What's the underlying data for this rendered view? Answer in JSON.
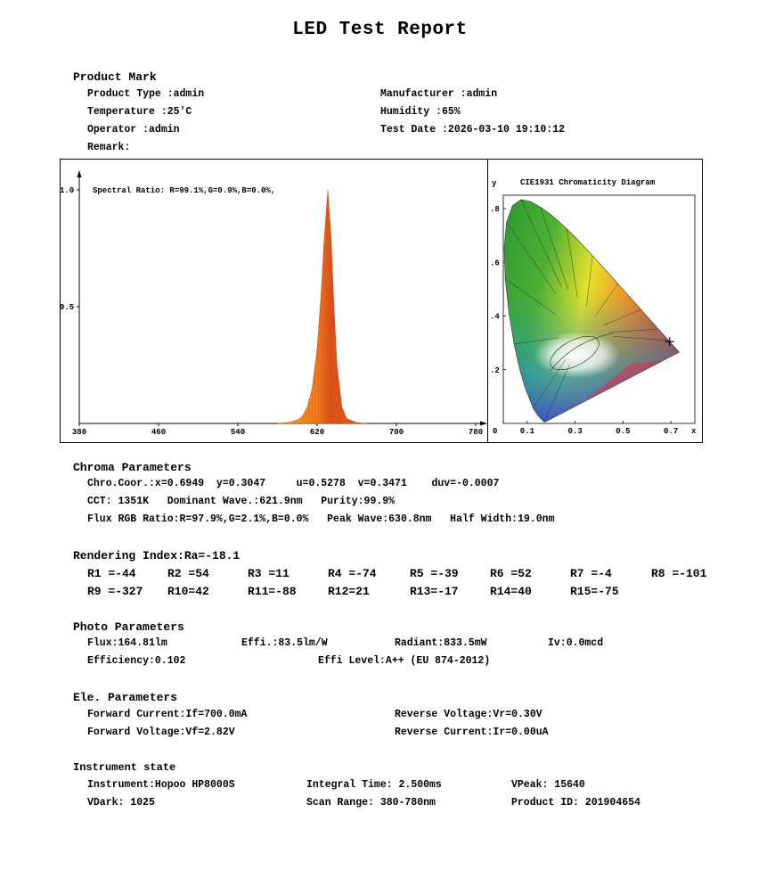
{
  "report_title": "LED Test Report",
  "product": {
    "section_title": "Product Mark",
    "product_type": "Product Type :admin",
    "manufacturer": "Manufacturer :admin",
    "temperature": "Temperature :25'C",
    "humidity": "Humidity :65%",
    "operator": "Operator :admin",
    "test_date": "Test Date :2026-03-10 19:10:12",
    "remark": "Remark:"
  },
  "chart_data": [
    {
      "type": "area",
      "title": "",
      "annotation": "Spectral Ratio:  R=99.1%,G=0.9%,B=0.0%,",
      "xlabel": "",
      "ylabel": "",
      "xlim": [
        380,
        780
      ],
      "ylim": [
        0,
        1.0
      ],
      "x_ticks": [
        "380",
        "460",
        "540",
        "620",
        "700",
        "780"
      ],
      "y_ticks": [
        "1.0",
        "0.5"
      ],
      "series": [
        {
          "x": [
            580,
            590,
            600,
            605,
            610,
            615,
            620,
            624,
            627,
            630.8,
            634,
            637,
            640,
            645,
            650,
            660,
            670
          ],
          "values": [
            0.0,
            0.004,
            0.015,
            0.03,
            0.07,
            0.15,
            0.32,
            0.55,
            0.78,
            1.0,
            0.8,
            0.5,
            0.25,
            0.07,
            0.02,
            0.004,
            0.0
          ]
        }
      ],
      "color": "#f0751f"
    },
    {
      "type": "scatter",
      "title": "CIE1931 Chromaticity Diagram",
      "xlabel": "x",
      "ylabel": "y",
      "xlim": [
        0,
        0.8
      ],
      "ylim": [
        0,
        0.85
      ],
      "x_ticks": [
        "0",
        "0.1",
        "0.3",
        "0.5",
        "0.7"
      ],
      "y_ticks": [
        ".8",
        ".6",
        ".4",
        ".2"
      ],
      "point": {
        "x": 0.6949,
        "y": 0.3047
      }
    }
  ],
  "chroma": {
    "section_title": "Chroma Parameters",
    "line1": "Chro.Coor.:x=0.6949  y=0.3047     u=0.5278  v=0.3471    duv=-0.0007",
    "line2": "CCT: 1351K   Dominant Wave.:621.9nm   Purity:99.9%",
    "line3": "Flux RGB Ratio:R=97.9%,G=2.1%,B=0.0%   Peak Wave:630.8nm   Half Width:19.0nm"
  },
  "rendering": {
    "section_title": "Rendering Index:Ra=-18.1",
    "row1": [
      "R1 =-44",
      "R2 =54",
      "R3 =11",
      "R4 =-74",
      "R5 =-39",
      "R6 =52",
      "R7 =-4",
      "R8 =-101"
    ],
    "row2": [
      "R9 =-327",
      "R10=42",
      "R11=-88",
      "R12=21",
      "R13=-17",
      "R14=40",
      "R15=-75"
    ]
  },
  "photo": {
    "section_title": "Photo Parameters",
    "flux": "Flux:164.81lm",
    "effi": "Effi.:83.5lm/W",
    "radiant": "Radiant:833.5mW",
    "iv": "Iv:0.0mcd",
    "efficiency": "Efficiency:0.102",
    "effi_level": "Effi Level:A++ (EU 874-2012)"
  },
  "electrical": {
    "section_title": "Ele. Parameters",
    "forward_current": "Forward Current:If=700.0mA",
    "reverse_voltage": "Reverse Voltage:Vr=0.30V",
    "forward_voltage": "Forward Voltage:Vf=2.82V",
    "reverse_current": "Reverse Current:Ir=0.00uA"
  },
  "instrument": {
    "section_title": "Instrument state",
    "instrument": "Instrument:Hopoo HP8000S",
    "integral_time": "Integral Time: 2.500ms",
    "vpeak": "VPeak: 15640",
    "vdark": "VDark: 1025",
    "scan_range": "Scan Range: 380-780nm",
    "product_id": "Product ID: 201904654"
  }
}
